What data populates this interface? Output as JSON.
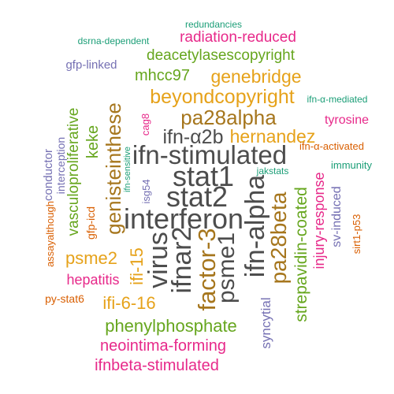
{
  "palette": {
    "dark_gray": "#4d4d4d",
    "orange": "#e6a21a",
    "brown": "#a6761d",
    "teal": "#1b9e77",
    "green": "#66a61e",
    "purple": "#7570b3",
    "magenta": "#e7298a",
    "burnt": "#d95f02"
  },
  "words": [
    {
      "text": "ifn-stimulated",
      "color": "#4d4d4d"
    },
    {
      "text": "stat1",
      "color": "#4d4d4d"
    },
    {
      "text": "stat2",
      "color": "#4d4d4d"
    },
    {
      "text": "interferon",
      "color": "#4d4d4d"
    },
    {
      "text": "virus",
      "color": "#4d4d4d"
    },
    {
      "text": "ifnar2",
      "color": "#4d4d4d"
    },
    {
      "text": "factor-3",
      "color": "#a6761d"
    },
    {
      "text": "psme1",
      "color": "#4d4d4d"
    },
    {
      "text": "ifn-alpha",
      "color": "#4d4d4d"
    },
    {
      "text": "pa28beta",
      "color": "#a6761d"
    },
    {
      "text": "pa28alpha",
      "color": "#a6761d"
    },
    {
      "text": "ifn-α2b",
      "color": "#4d4d4d"
    },
    {
      "text": "hernandez",
      "color": "#e6a21a"
    },
    {
      "text": "genisteinthese",
      "color": "#a6761d"
    },
    {
      "text": "beyondcopyright",
      "color": "#e6a21a"
    },
    {
      "text": "genebridge",
      "color": "#e6a21a"
    },
    {
      "text": "deacetylasescopyright",
      "color": "#66a61e"
    },
    {
      "text": "radiation-reduced",
      "color": "#e7298a"
    },
    {
      "text": "mhcc97",
      "color": "#66a61e"
    },
    {
      "text": "psme2",
      "color": "#e6a21a"
    },
    {
      "text": "ifi-15",
      "color": "#e6a21a"
    },
    {
      "text": "ifi-6-16",
      "color": "#e6a21a"
    },
    {
      "text": "phenylphosphate",
      "color": "#66a61e"
    },
    {
      "text": "neointima-forming",
      "color": "#e7298a"
    },
    {
      "text": "ifnbeta-stimulated",
      "color": "#e7298a"
    },
    {
      "text": "strepavidin-coated",
      "color": "#66a61e"
    },
    {
      "text": "injury-response",
      "color": "#e7298a"
    },
    {
      "text": "tyrosine",
      "color": "#e7298a"
    },
    {
      "text": "vasculoproliferative",
      "color": "#66a61e"
    },
    {
      "text": "keke",
      "color": "#66a61e"
    },
    {
      "text": "hepatitis",
      "color": "#e7298a"
    },
    {
      "text": "syncytial",
      "color": "#7570b3"
    },
    {
      "text": "sv-induced",
      "color": "#7570b3"
    },
    {
      "text": "gfp-linked",
      "color": "#7570b3"
    },
    {
      "text": "interception",
      "color": "#7570b3"
    },
    {
      "text": "conductor",
      "color": "#7570b3"
    },
    {
      "text": "isg54",
      "color": "#7570b3"
    },
    {
      "text": "cag8",
      "color": "#e7298a"
    },
    {
      "text": "gfp-icd",
      "color": "#d95f02"
    },
    {
      "text": "assayalthough",
      "color": "#d95f02"
    },
    {
      "text": "py-stat6",
      "color": "#d95f02"
    },
    {
      "text": "sirt1-p53",
      "color": "#d95f02"
    },
    {
      "text": "ifn-α-activated",
      "color": "#d95f02"
    },
    {
      "text": "ifn-α-mediated",
      "color": "#1b9e77"
    },
    {
      "text": "immunity",
      "color": "#1b9e77"
    },
    {
      "text": "jakstats",
      "color": "#1b9e77"
    },
    {
      "text": "ifn-sensitive",
      "color": "#1b9e77"
    },
    {
      "text": "dsrna-dependent",
      "color": "#1b9e77"
    },
    {
      "text": "redundancies",
      "color": "#1b9e77"
    }
  ]
}
